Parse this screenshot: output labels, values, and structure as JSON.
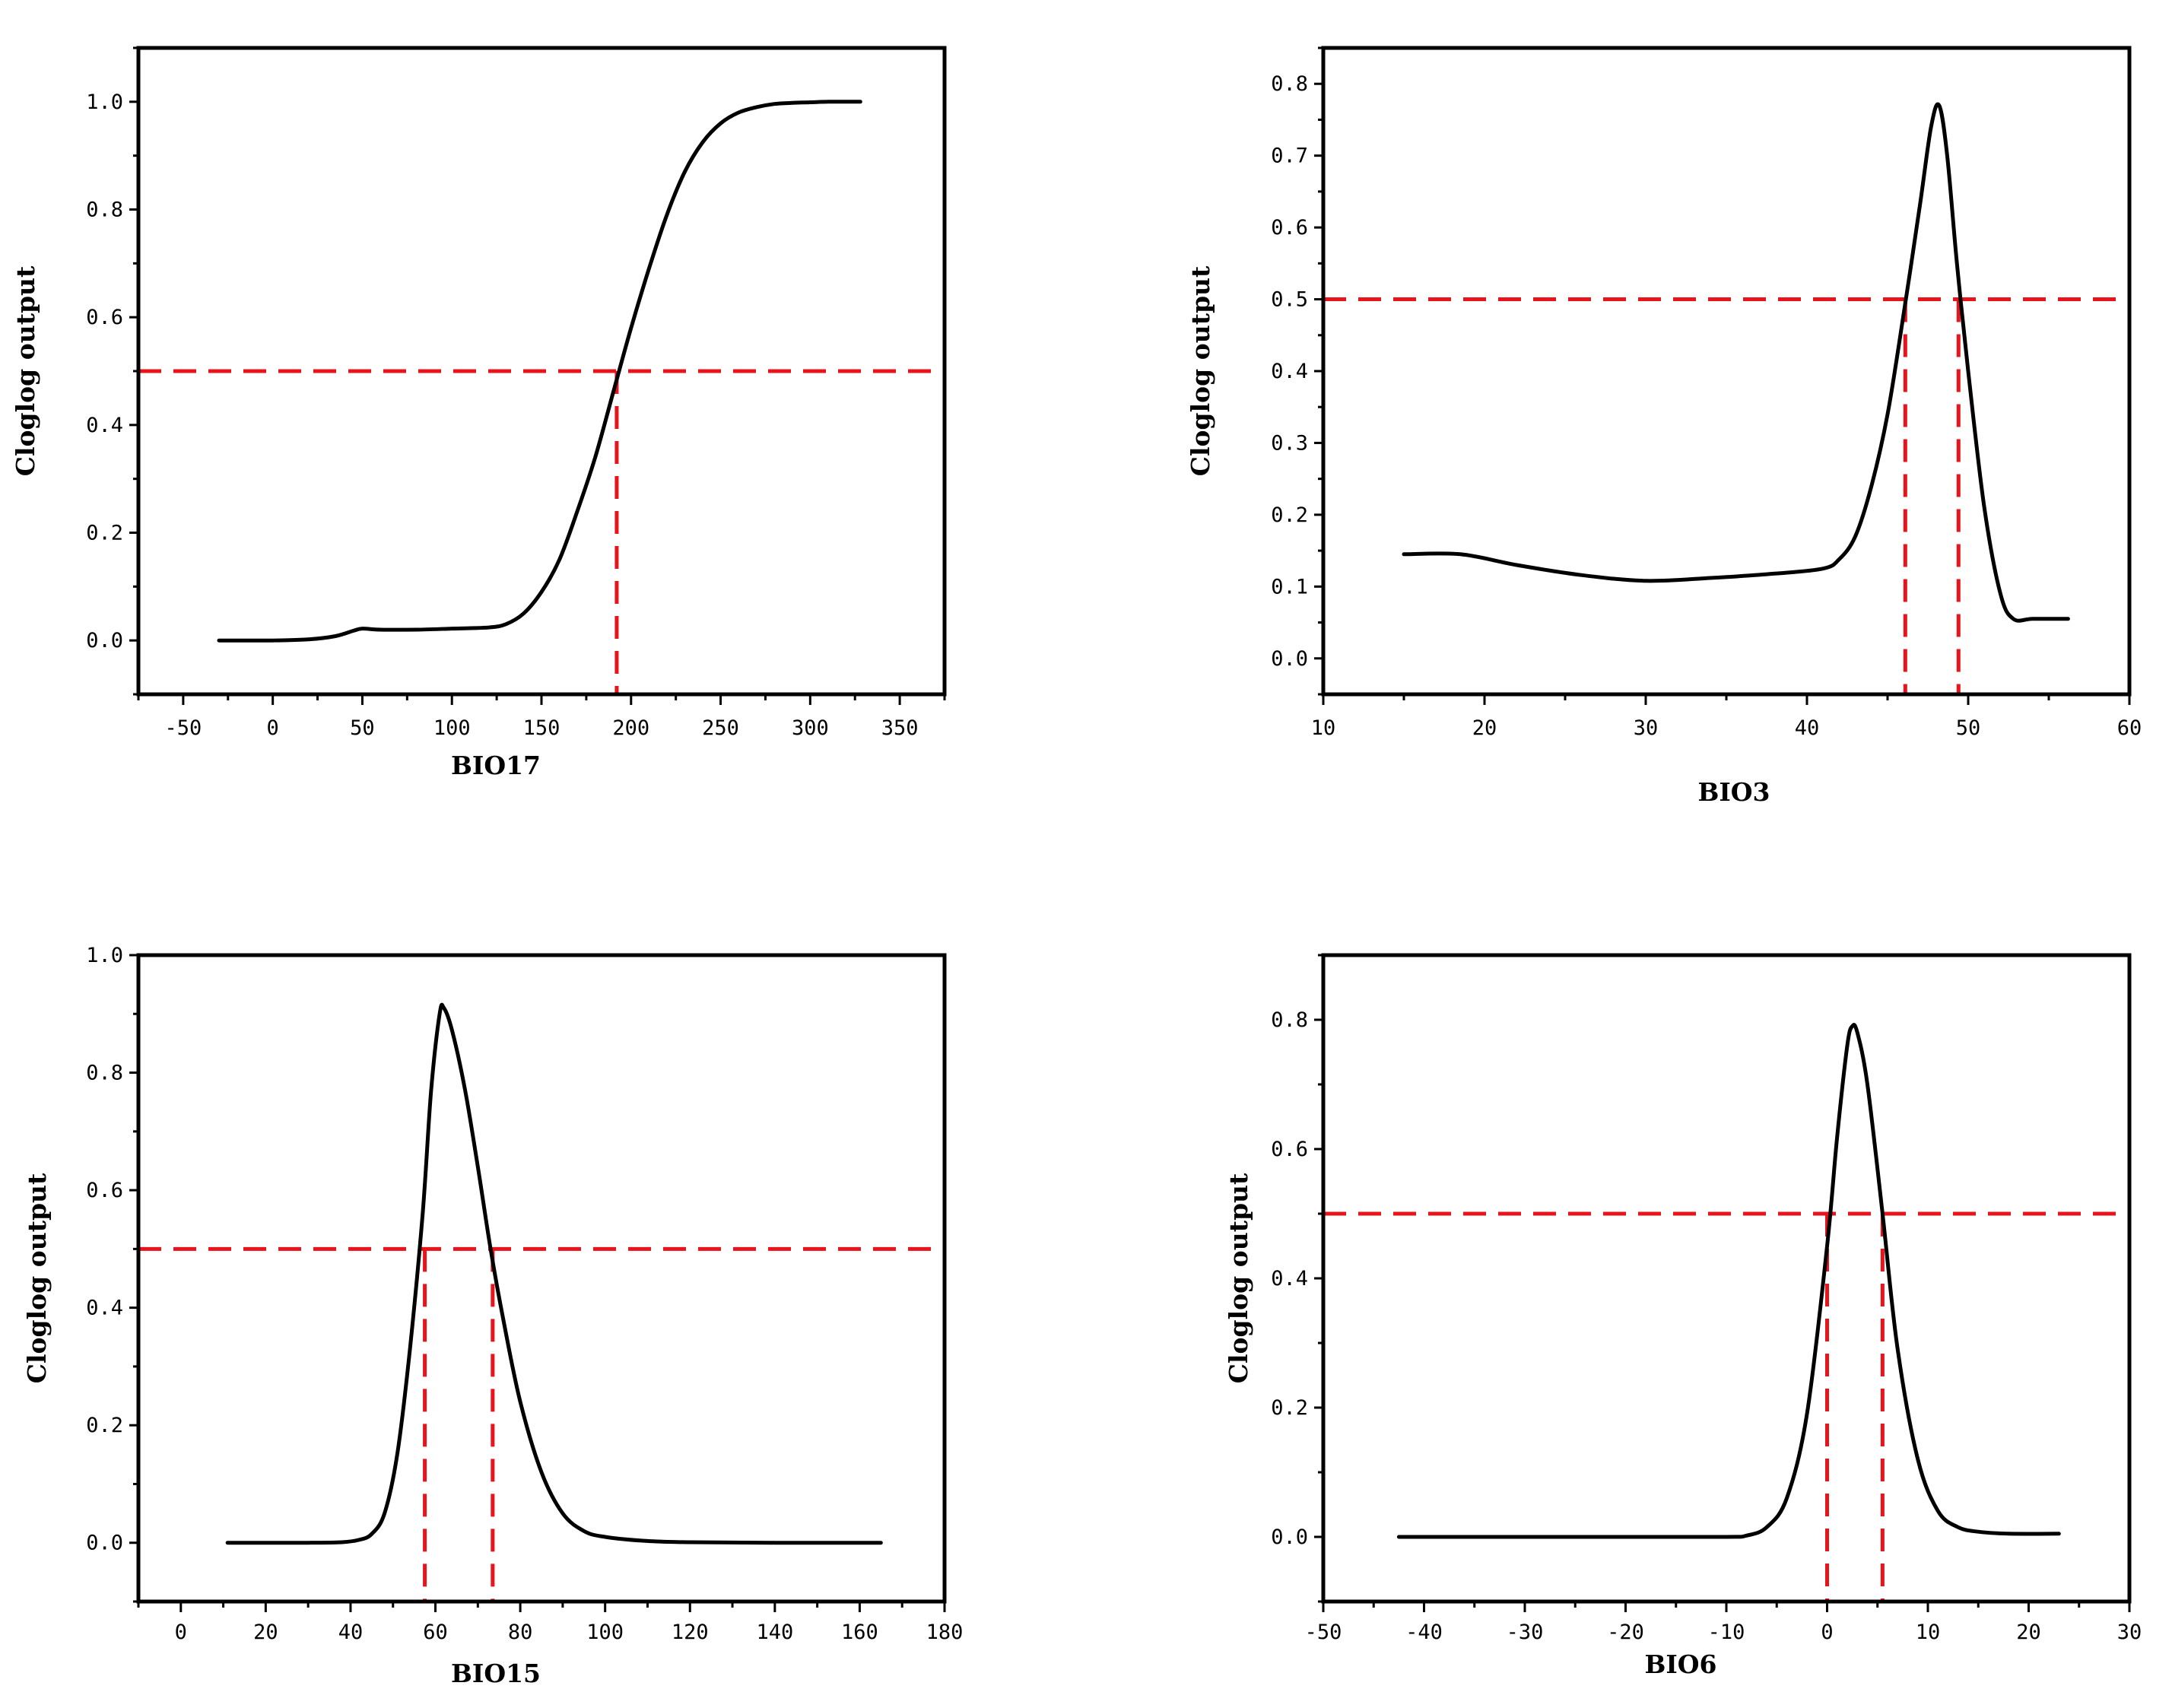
{
  "colors": {
    "curve": "#000000",
    "threshold": "#e8141c",
    "axis": "#000000",
    "background": "#ffffff"
  },
  "chart_data": [
    {
      "type": "line",
      "panel": "top-left",
      "xlabel": "BIO17",
      "ylabel": "Cloglog output",
      "xlim": [
        -75,
        375
      ],
      "ylim": [
        -0.1,
        1.1
      ],
      "xticks": [
        -50,
        0,
        50,
        100,
        150,
        200,
        250,
        300,
        350
      ],
      "yticks": [
        0.0,
        0.2,
        0.4,
        0.6,
        0.8,
        1.0
      ],
      "xtick_labels": [
        "-50",
        "0",
        "50",
        "100",
        "150",
        "200",
        "250",
        "300",
        "350"
      ],
      "ytick_labels": [
        "0.0",
        "0.2",
        "0.4",
        "0.6",
        "0.8",
        "1.0"
      ],
      "threshold": 0.5,
      "threshold_x": [
        192
      ],
      "x": [
        -30,
        0,
        20,
        35,
        45,
        50,
        60,
        80,
        100,
        120,
        130,
        140,
        150,
        160,
        170,
        180,
        190,
        200,
        210,
        220,
        230,
        240,
        250,
        260,
        270,
        280,
        290,
        300,
        310,
        328
      ],
      "y": [
        0.0,
        0.0,
        0.002,
        0.008,
        0.018,
        0.022,
        0.02,
        0.02,
        0.022,
        0.024,
        0.03,
        0.05,
        0.09,
        0.15,
        0.24,
        0.34,
        0.46,
        0.58,
        0.69,
        0.79,
        0.87,
        0.925,
        0.96,
        0.98,
        0.99,
        0.996,
        0.998,
        0.999,
        1.0,
        1.0
      ]
    },
    {
      "type": "line",
      "panel": "top-right",
      "xlabel": "BIO3",
      "ylabel": "Cloglog output",
      "xlim": [
        10,
        60
      ],
      "ylim": [
        -0.05,
        0.85
      ],
      "xticks": [
        10,
        20,
        30,
        40,
        50,
        60
      ],
      "yticks": [
        0.0,
        0.1,
        0.2,
        0.3,
        0.4,
        0.5,
        0.6,
        0.7,
        0.8
      ],
      "xtick_labels": [
        "10",
        "20",
        "30",
        "40",
        "50",
        "60"
      ],
      "ytick_labels": [
        "0.0",
        "0.1",
        "0.2",
        "0.3",
        "0.4",
        "0.5",
        "0.6",
        "0.7",
        "0.8"
      ],
      "threshold": 0.5,
      "threshold_x": [
        46.1,
        49.4
      ],
      "x": [
        15,
        18.5,
        22,
        26,
        30,
        34,
        38,
        41,
        42,
        43,
        44,
        45,
        46,
        47,
        47.7,
        48.2,
        48.7,
        49.3,
        50,
        51,
        52,
        52.8,
        54,
        56.2
      ],
      "y": [
        0.145,
        0.145,
        0.13,
        0.116,
        0.108,
        0.112,
        0.118,
        0.125,
        0.138,
        0.17,
        0.24,
        0.34,
        0.48,
        0.63,
        0.74,
        0.77,
        0.7,
        0.55,
        0.4,
        0.21,
        0.09,
        0.055,
        0.055,
        0.055
      ]
    },
    {
      "type": "line",
      "panel": "bottom-left",
      "xlabel": "BIO15",
      "ylabel": "Cloglog output",
      "xlim": [
        -10,
        180
      ],
      "ylim": [
        -0.1,
        1.0
      ],
      "xticks": [
        0,
        20,
        40,
        60,
        80,
        100,
        120,
        140,
        160,
        180
      ],
      "yticks": [
        0.0,
        0.2,
        0.4,
        0.6,
        0.8,
        1.0
      ],
      "xtick_labels": [
        "0",
        "20",
        "40",
        "60",
        "80",
        "100",
        "120",
        "140",
        "160",
        "180"
      ],
      "ytick_labels": [
        "0.0",
        "0.2",
        "0.4",
        "0.6",
        "0.8",
        "1.0"
      ],
      "threshold": 0.5,
      "threshold_x": [
        57.5,
        73.5
      ],
      "x": [
        11,
        30,
        38,
        42,
        45,
        48,
        51,
        54,
        57,
        59,
        61,
        62,
        64,
        67,
        70,
        73,
        76,
        80,
        85,
        90,
        95,
        100,
        110,
        120,
        140,
        165
      ],
      "y": [
        0.0,
        0.0,
        0.001,
        0.005,
        0.015,
        0.05,
        0.15,
        0.33,
        0.56,
        0.77,
        0.9,
        0.91,
        0.87,
        0.77,
        0.64,
        0.5,
        0.38,
        0.24,
        0.12,
        0.05,
        0.02,
        0.01,
        0.003,
        0.001,
        0.0,
        0.0
      ]
    },
    {
      "type": "line",
      "panel": "bottom-right",
      "xlabel": "BIO6",
      "ylabel": "Cloglog output",
      "xlim": [
        -50,
        30
      ],
      "ylim": [
        -0.1,
        0.9
      ],
      "xticks": [
        -50,
        -40,
        -30,
        -20,
        -10,
        0,
        10,
        20,
        30
      ],
      "yticks": [
        0.0,
        0.2,
        0.4,
        0.6,
        0.8
      ],
      "xtick_labels": [
        "-50",
        "-40",
        "-30",
        "-20",
        "-10",
        "0",
        "10",
        "20",
        "30"
      ],
      "ytick_labels": [
        "0.0",
        "0.2",
        "0.4",
        "0.6",
        "0.8"
      ],
      "threshold": 0.5,
      "threshold_x": [
        0.0,
        5.5
      ],
      "x": [
        -42.5,
        -20,
        -10,
        -8,
        -6,
        -4,
        -2,
        0,
        1,
        2,
        2.5,
        3,
        4,
        5.5,
        7,
        9,
        11,
        13,
        15,
        18,
        23
      ],
      "y": [
        0.0,
        0.0,
        0.0,
        0.002,
        0.015,
        0.06,
        0.19,
        0.45,
        0.62,
        0.76,
        0.79,
        0.78,
        0.7,
        0.5,
        0.29,
        0.12,
        0.04,
        0.015,
        0.008,
        0.005,
        0.005
      ]
    }
  ]
}
